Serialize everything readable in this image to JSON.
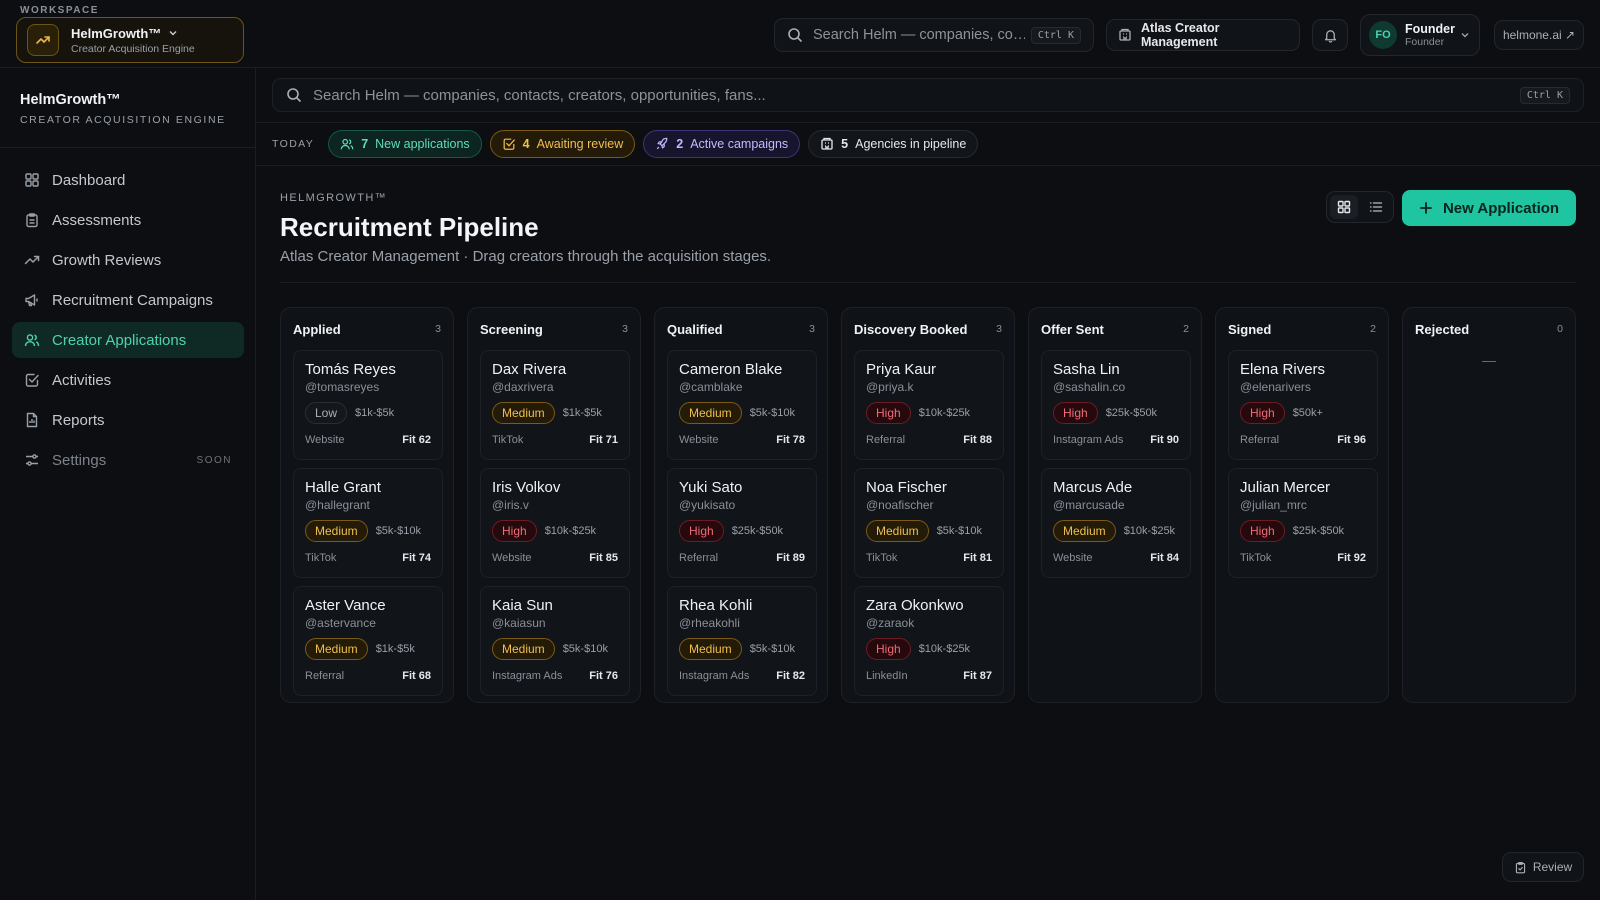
{
  "topbar": {
    "workspace_label": "WORKSPACE",
    "workspace_name": "HelmGrowth™",
    "workspace_sub": "Creator Acquisition Engine",
    "search_placeholder": "Search Helm — companies, co…",
    "search_shortcut": "Ctrl K",
    "org_name": "Atlas Creator Management",
    "user_initials": "FO",
    "user_name": "Founder",
    "user_role": "Founder",
    "site_link": "helmone.ai ↗"
  },
  "sidebar": {
    "brand": "HelmGrowth™",
    "tagline": "CREATOR ACQUISITION ENGINE",
    "items": [
      {
        "label": "Dashboard",
        "icon": "dashboard-icon"
      },
      {
        "label": "Assessments",
        "icon": "clipboard-icon"
      },
      {
        "label": "Growth Reviews",
        "icon": "trend-icon"
      },
      {
        "label": "Recruitment Campaigns",
        "icon": "megaphone-icon"
      },
      {
        "label": "Creator Applications",
        "icon": "users-icon",
        "active": true
      },
      {
        "label": "Activities",
        "icon": "check-square-icon"
      },
      {
        "label": "Reports",
        "icon": "report-icon"
      },
      {
        "label": "Settings",
        "icon": "sliders-icon",
        "badge": "SOON"
      }
    ]
  },
  "main": {
    "search_placeholder": "Search Helm — companies, contacts, creators, opportunities, fans...",
    "search_shortcut": "Ctrl K",
    "today_label": "TODAY",
    "stats": [
      {
        "count": "7",
        "label": "New applications",
        "color": "#5fdcbd"
      },
      {
        "count": "4",
        "label": "Awaiting review",
        "color": "#f0bf4e"
      },
      {
        "count": "2",
        "label": "Active campaigns",
        "color": "#c3b9ff"
      },
      {
        "count": "5",
        "label": "Agencies in pipeline",
        "color": "#e6e8eb"
      }
    ],
    "eyebrow": "HELMGROWTH™",
    "title": "Recruitment Pipeline",
    "subtitle": "Atlas Creator Management · Drag creators through the acquisition stages.",
    "new_button": "New Application",
    "review_button": "Review"
  },
  "columns": [
    {
      "title": "Applied",
      "count": "3",
      "cards": [
        {
          "name": "Tomás Reyes",
          "handle": "@tomasreyes",
          "priority": "Low",
          "budget": "$1k-$5k",
          "source": "Website",
          "fit": "Fit 62"
        },
        {
          "name": "Halle Grant",
          "handle": "@hallegrant",
          "priority": "Medium",
          "budget": "$5k-$10k",
          "source": "TikTok",
          "fit": "Fit 74"
        },
        {
          "name": "Aster Vance",
          "handle": "@astervance",
          "priority": "Medium",
          "budget": "$1k-$5k",
          "source": "Referral",
          "fit": "Fit 68"
        }
      ]
    },
    {
      "title": "Screening",
      "count": "3",
      "cards": [
        {
          "name": "Dax Rivera",
          "handle": "@daxrivera",
          "priority": "Medium",
          "budget": "$1k-$5k",
          "source": "TikTok",
          "fit": "Fit 71"
        },
        {
          "name": "Iris Volkov",
          "handle": "@iris.v",
          "priority": "High",
          "budget": "$10k-$25k",
          "source": "Website",
          "fit": "Fit 85"
        },
        {
          "name": "Kaia Sun",
          "handle": "@kaiasun",
          "priority": "Medium",
          "budget": "$5k-$10k",
          "source": "Instagram Ads",
          "fit": "Fit 76"
        }
      ]
    },
    {
      "title": "Qualified",
      "count": "3",
      "cards": [
        {
          "name": "Cameron Blake",
          "handle": "@camblake",
          "priority": "Medium",
          "budget": "$5k-$10k",
          "source": "Website",
          "fit": "Fit 78"
        },
        {
          "name": "Yuki Sato",
          "handle": "@yukisato",
          "priority": "High",
          "budget": "$25k-$50k",
          "source": "Referral",
          "fit": "Fit 89"
        },
        {
          "name": "Rhea Kohli",
          "handle": "@rheakohli",
          "priority": "Medium",
          "budget": "$5k-$10k",
          "source": "Instagram Ads",
          "fit": "Fit 82"
        }
      ]
    },
    {
      "title": "Discovery Booked",
      "count": "3",
      "cards": [
        {
          "name": "Priya Kaur",
          "handle": "@priya.k",
          "priority": "High",
          "budget": "$10k-$25k",
          "source": "Referral",
          "fit": "Fit 88"
        },
        {
          "name": "Noa Fischer",
          "handle": "@noafischer",
          "priority": "Medium",
          "budget": "$5k-$10k",
          "source": "TikTok",
          "fit": "Fit 81"
        },
        {
          "name": "Zara Okonkwo",
          "handle": "@zaraok",
          "priority": "High",
          "budget": "$10k-$25k",
          "source": "LinkedIn",
          "fit": "Fit 87"
        }
      ]
    },
    {
      "title": "Offer Sent",
      "count": "2",
      "cards": [
        {
          "name": "Sasha Lin",
          "handle": "@sashalin.co",
          "priority": "High",
          "budget": "$25k-$50k",
          "source": "Instagram Ads",
          "fit": "Fit 90"
        },
        {
          "name": "Marcus Ade",
          "handle": "@marcusade",
          "priority": "Medium",
          "budget": "$10k-$25k",
          "source": "Website",
          "fit": "Fit 84"
        }
      ]
    },
    {
      "title": "Signed",
      "count": "2",
      "cards": [
        {
          "name": "Elena Rivers",
          "handle": "@elenarivers",
          "priority": "High",
          "budget": "$50k+",
          "source": "Referral",
          "fit": "Fit 96"
        },
        {
          "name": "Julian Mercer",
          "handle": "@julian_mrc",
          "priority": "High",
          "budget": "$25k-$50k",
          "source": "TikTok",
          "fit": "Fit 92"
        }
      ]
    },
    {
      "title": "Rejected",
      "count": "0",
      "empty": "—",
      "cards": []
    }
  ]
}
